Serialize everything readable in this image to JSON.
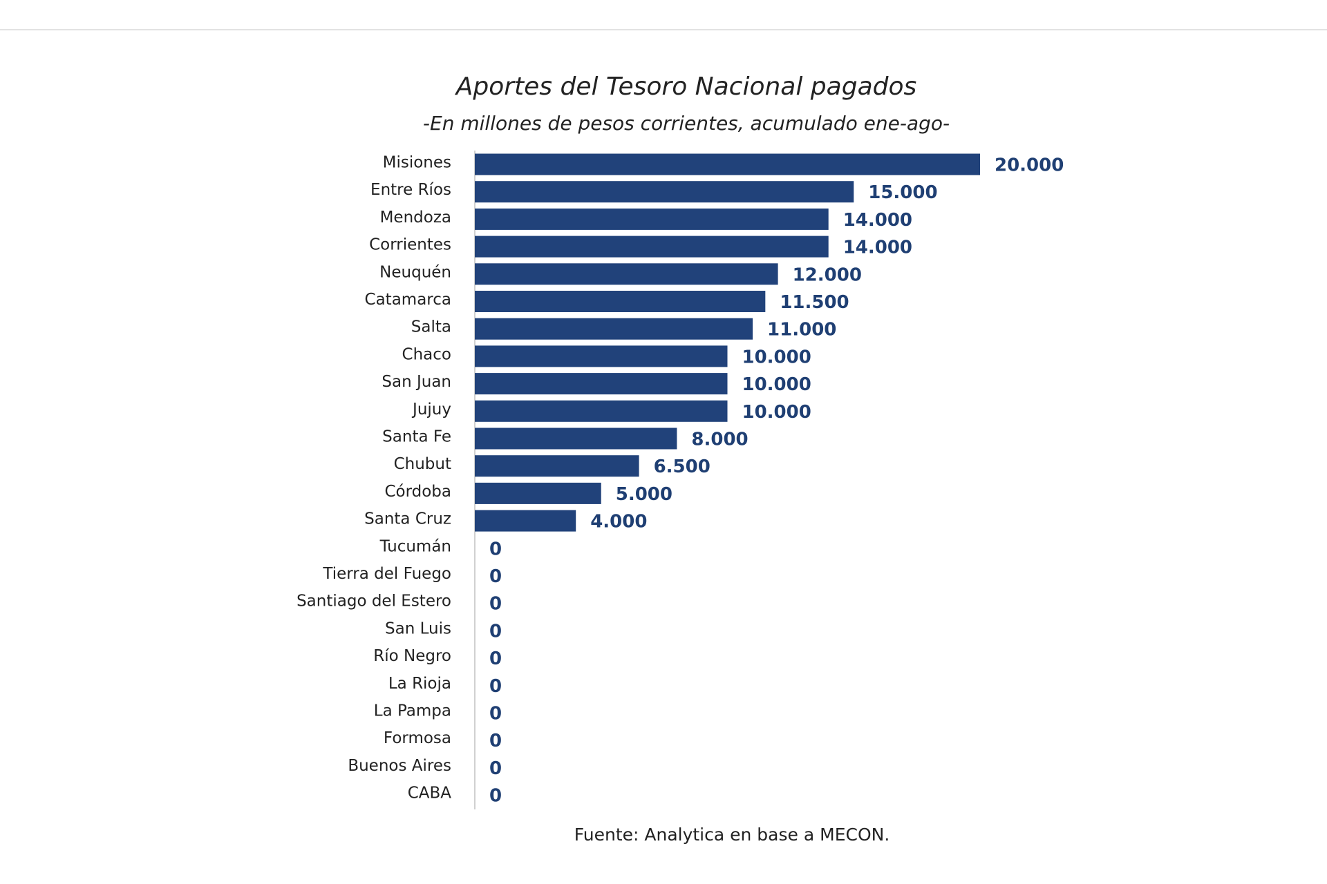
{
  "chart_data": {
    "type": "bar",
    "orientation": "horizontal",
    "title": "Aportes del Tesoro Nacional pagados",
    "subtitle": "-En millones de pesos corrientes, acumulado ene-ago-",
    "note": "Fuente: Analytica en base a MECON.",
    "color": "#21427a",
    "categories": [
      "Misiones",
      "Entre Ríos",
      "Mendoza",
      "Corrientes",
      "Neuquén",
      "Catamarca",
      "Salta",
      "Chaco",
      "San Juan",
      "Jujuy",
      "Santa Fe",
      "Chubut",
      "Córdoba",
      "Santa Cruz",
      "Tucumán",
      "Tierra del Fuego",
      "Santiago del Estero",
      "San Luis",
      "Río Negro",
      "La Rioja",
      "La Pampa",
      "Formosa",
      "Buenos Aires",
      "CABA"
    ],
    "values": [
      20000,
      15000,
      14000,
      14000,
      12000,
      11500,
      11000,
      10000,
      10000,
      10000,
      8000,
      6500,
      5000,
      4000,
      0,
      0,
      0,
      0,
      0,
      0,
      0,
      0,
      0,
      0
    ],
    "value_labels": [
      "20.000",
      "15.000",
      "14.000",
      "14.000",
      "12.000",
      "11.500",
      "11.000",
      "10.000",
      "10.000",
      "10.000",
      "8.000",
      "6.500",
      "5.000",
      "4.000",
      "0",
      "0",
      "0",
      "0",
      "0",
      "0",
      "0",
      "0",
      "0",
      "0"
    ]
  }
}
